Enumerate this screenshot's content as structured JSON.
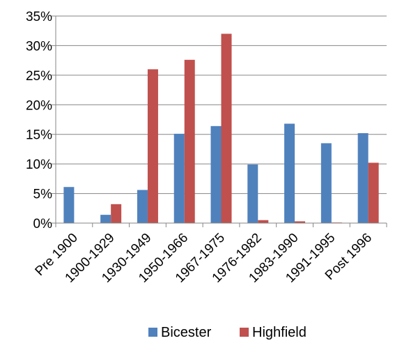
{
  "chart_data": {
    "type": "bar",
    "title": "",
    "xlabel": "",
    "ylabel": "",
    "categories": [
      "Pre 1900",
      "1900-1929",
      "1930-1949",
      "1950-1966",
      "1967-1975",
      "1976-1982",
      "1983-1990",
      "1991-1995",
      "Post 1996"
    ],
    "series": [
      {
        "name": "Bicester",
        "color": "#4f81bd",
        "values": [
          6.1,
          1.4,
          5.6,
          15.1,
          16.4,
          9.9,
          16.8,
          13.5,
          15.2
        ]
      },
      {
        "name": "Highfield",
        "color": "#c0504d",
        "values": [
          0.0,
          3.2,
          26.0,
          27.6,
          32.0,
          0.5,
          0.3,
          0.1,
          10.2
        ]
      }
    ],
    "ylim": [
      0,
      35
    ],
    "yticks": [
      0,
      5,
      10,
      15,
      20,
      25,
      30,
      35
    ],
    "ytick_labels": [
      "0%",
      "5%",
      "10%",
      "15%",
      "20%",
      "25%",
      "30%",
      "35%"
    ],
    "grid": true,
    "legend_position": "bottom"
  }
}
